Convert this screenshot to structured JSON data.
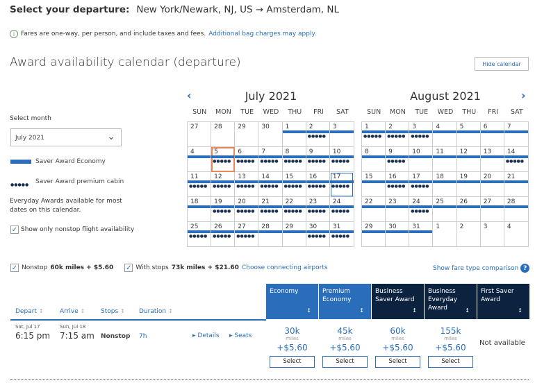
{
  "header": {
    "label": "Select your departure:",
    "route": "New York/Newark, NJ, US → Amsterdam, NL"
  },
  "note": {
    "text": "Fares are one-way, per person, and include taxes and fees.",
    "link": "Additional bag charges may apply."
  },
  "calendar": {
    "title": "Award availability calendar (departure)",
    "hide_label": "Hide calendar",
    "select_month_label": "Select month",
    "selected_month": "July 2021",
    "legend": {
      "economy": "Saver Award Economy",
      "premium": "Saver Award premium cabin",
      "dots": "●●●●●"
    },
    "everyday_note": "Everyday Awards available for most dates on this calendar.",
    "nonstop_only_label": "Show only nonstop flight availability",
    "nonstop_only_checked": true,
    "weekdays": [
      "SUN",
      "MON",
      "TUE",
      "WED",
      "THU",
      "FRI",
      "SAT"
    ],
    "colors": {
      "economy_bar": "#2a6ebb",
      "premium_dots": "#1a2e50",
      "today": "#e9875a",
      "selected": "#2a6ebb"
    },
    "months": [
      {
        "title": "July 2021",
        "weeks": [
          [
            {
              "d": "27"
            },
            {
              "d": "28"
            },
            {
              "d": "29"
            },
            {
              "d": "30"
            },
            {
              "d": "1",
              "e": 1
            },
            {
              "d": "2",
              "e": 1,
              "p": 1
            },
            {
              "d": "3",
              "e": 1
            }
          ],
          [
            {
              "d": "4",
              "e": 1
            },
            {
              "d": "5",
              "e": 1,
              "p": 1,
              "today": 1
            },
            {
              "d": "6",
              "e": 1,
              "p": 1
            },
            {
              "d": "7",
              "e": 1,
              "p": 1
            },
            {
              "d": "8",
              "e": 1,
              "p": 1
            },
            {
              "d": "9",
              "e": 1,
              "p": 1
            },
            {
              "d": "10",
              "e": 1,
              "p": 1
            }
          ],
          [
            {
              "d": "11",
              "e": 1,
              "p": 1
            },
            {
              "d": "12",
              "e": 1,
              "p": 1
            },
            {
              "d": "13",
              "e": 1,
              "p": 1
            },
            {
              "d": "14",
              "e": 1,
              "p": 1
            },
            {
              "d": "15",
              "e": 1,
              "p": 1
            },
            {
              "d": "16",
              "e": 1,
              "p": 1
            },
            {
              "d": "17",
              "e": 1,
              "p": 1,
              "sel": 1
            }
          ],
          [
            {
              "d": "18",
              "e": 1
            },
            {
              "d": "19",
              "e": 1,
              "p": 1
            },
            {
              "d": "20",
              "e": 1,
              "p": 1
            },
            {
              "d": "21",
              "e": 1,
              "p": 1
            },
            {
              "d": "22",
              "e": 1,
              "p": 1
            },
            {
              "d": "23",
              "e": 1,
              "p": 1
            },
            {
              "d": "24",
              "e": 1,
              "p": 1
            }
          ],
          [
            {
              "d": "25",
              "e": 1,
              "p": 1
            },
            {
              "d": "26",
              "e": 1,
              "p": 1
            },
            {
              "d": "27",
              "e": 1,
              "p": 1
            },
            {
              "d": "28",
              "e": 1
            },
            {
              "d": "29",
              "e": 1
            },
            {
              "d": "30",
              "e": 1,
              "p": 1
            },
            {
              "d": "31",
              "e": 1,
              "p": 1
            }
          ]
        ]
      },
      {
        "title": "August 2021",
        "weeks": [
          [
            {
              "d": "1",
              "e": 1,
              "p": 1
            },
            {
              "d": "2",
              "e": 1,
              "p": 1
            },
            {
              "d": "3",
              "e": 1,
              "p": 1
            },
            {
              "d": "4",
              "e": 1
            },
            {
              "d": "5",
              "e": 1
            },
            {
              "d": "6",
              "e": 1
            },
            {
              "d": "7",
              "e": 1
            }
          ],
          [
            {
              "d": "8",
              "e": 1
            },
            {
              "d": "9",
              "e": 1,
              "p": 1
            },
            {
              "d": "10",
              "e": 1
            },
            {
              "d": "11",
              "e": 1
            },
            {
              "d": "12",
              "e": 1
            },
            {
              "d": "13",
              "e": 1
            },
            {
              "d": "14",
              "e": 1,
              "p": 1
            }
          ],
          [
            {
              "d": "15",
              "e": 1
            },
            {
              "d": "16",
              "e": 1,
              "p": 1
            },
            {
              "d": "17",
              "e": 1,
              "p": 1
            },
            {
              "d": "18",
              "e": 1
            },
            {
              "d": "19",
              "e": 1
            },
            {
              "d": "20",
              "e": 1
            },
            {
              "d": "21",
              "e": 1
            }
          ],
          [
            {
              "d": "22",
              "e": 1
            },
            {
              "d": "23",
              "e": 1
            },
            {
              "d": "24",
              "e": 1,
              "p": 1
            },
            {
              "d": "25",
              "e": 1
            },
            {
              "d": "26",
              "e": 1
            },
            {
              "d": "27",
              "e": 1
            },
            {
              "d": "28",
              "e": 1
            }
          ],
          [
            {
              "d": "29",
              "e": 1
            },
            {
              "d": "30",
              "e": 1
            },
            {
              "d": "31",
              "e": 1
            },
            {
              "d": "1"
            },
            {
              "d": "2"
            },
            {
              "d": "3"
            },
            {
              "d": "4"
            }
          ]
        ]
      }
    ]
  },
  "filters": {
    "nonstop": "Nonstop",
    "nonstop_price": "60k miles + $5.60",
    "with_stops": "With stops",
    "with_stops_price": "73k miles + $21.60",
    "connecting_link": "Choose connecting airports",
    "compare_link": "Show fare type comparison"
  },
  "table": {
    "columns": [
      "Depart",
      "Arrive",
      "Stops",
      "Duration"
    ],
    "sort_icon": "↕",
    "fares": [
      {
        "label": "Economy",
        "color": "#2a6ebb"
      },
      {
        "label": "Premium Economy",
        "color": "#2a6ebb"
      },
      {
        "label": "Business Saver Award",
        "color": "#0c2340"
      },
      {
        "label": "Business Everyday Award",
        "color": "#0c2340"
      },
      {
        "label": "First Saver Award",
        "color": "#0c2340"
      }
    ],
    "rows": [
      {
        "depart_date": "Sat, Jul 17",
        "depart_time": "6:15 pm",
        "arrive_date": "Sun, Jul 18",
        "arrive_time": "7:15 am",
        "stops": "Nonstop",
        "duration": "7h",
        "details": "Details",
        "seats": "Seats",
        "prices": [
          {
            "miles": "30k",
            "unit": "miles",
            "fee": "+$5.60",
            "button": "Select"
          },
          {
            "miles": "45k",
            "unit": "miles",
            "fee": "+$5.60",
            "button": "Select"
          },
          {
            "miles": "60k",
            "unit": "miles",
            "fee": "+$5.60",
            "button": "Select"
          },
          {
            "miles": "155k",
            "unit": "miles",
            "fee": "+$5.60",
            "button": "Select"
          }
        ],
        "unavailable": "Not available"
      }
    ]
  }
}
